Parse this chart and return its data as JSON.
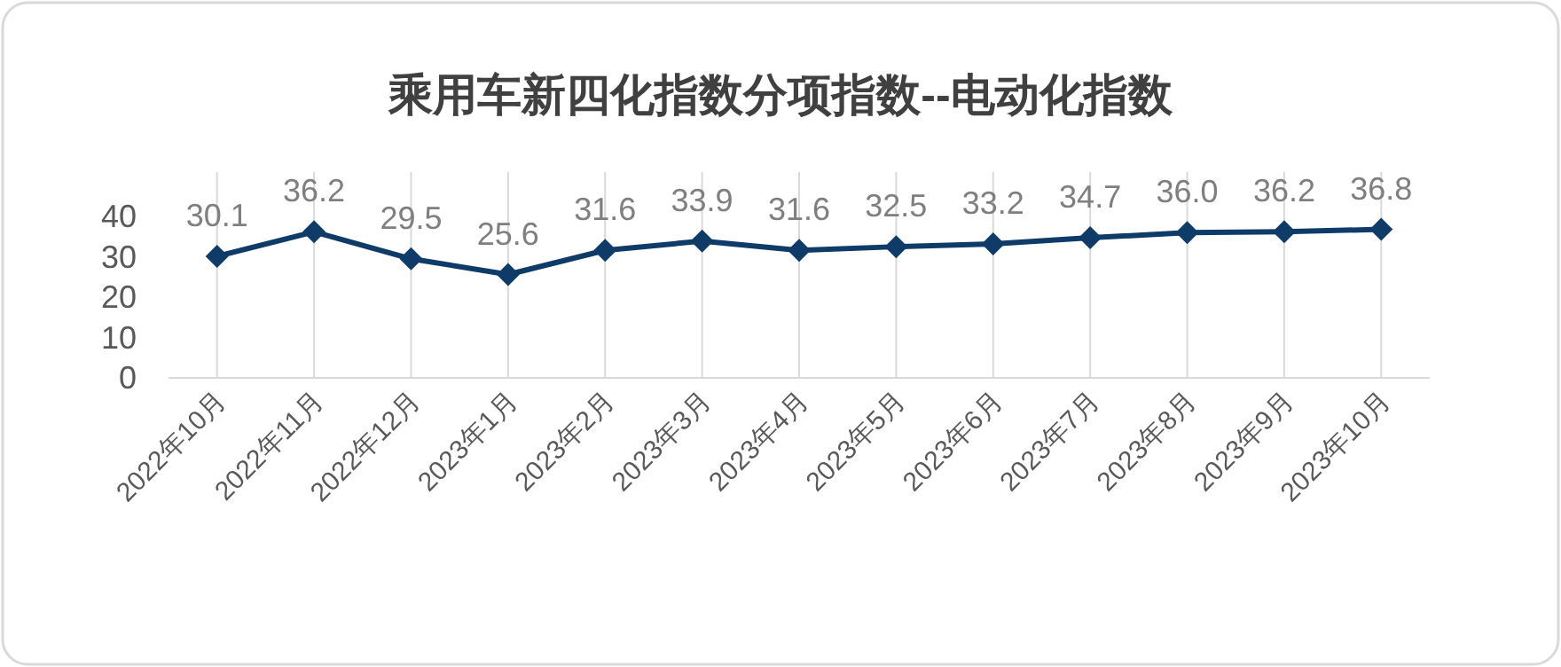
{
  "chart_data": {
    "type": "line",
    "title": "乘用车新四化指数分项指数--电动化指数",
    "categories": [
      "2022年10月",
      "2022年11月",
      "2022年12月",
      "2023年1月",
      "2023年2月",
      "2023年3月",
      "2023年4月",
      "2023年5月",
      "2023年6月",
      "2023年7月",
      "2023年8月",
      "2023年9月",
      "2023年10月"
    ],
    "series": [
      {
        "color": "#0f3b68",
        "values": [
          30.1,
          36.2,
          29.5,
          25.6,
          31.6,
          33.9,
          31.6,
          32.5,
          33.2,
          34.7,
          36.0,
          36.2,
          36.8
        ],
        "value_labels": [
          "30.1",
          "36.2",
          "29.5",
          "25.6",
          "31.6",
          "33.9",
          "31.6",
          "32.5",
          "33.2",
          "34.7",
          "36.0",
          "36.2",
          "36.8"
        ]
      }
    ],
    "ylim": [
      0,
      40
    ],
    "yticks": [
      0,
      10,
      20,
      30,
      40
    ],
    "grid": "x",
    "marker": "diamond",
    "line_style": "solid"
  }
}
